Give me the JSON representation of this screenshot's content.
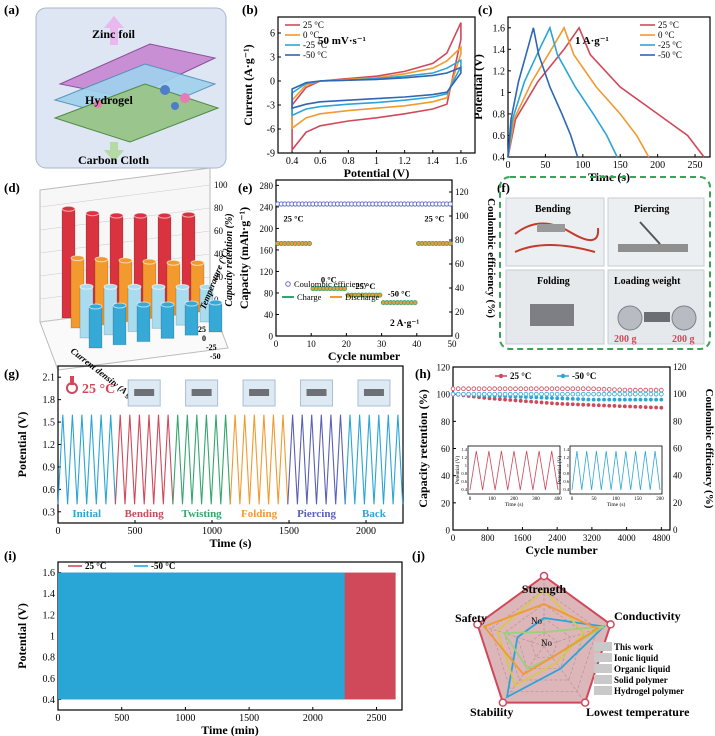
{
  "panels": {
    "a": {
      "label": "(a)",
      "texts": [
        "Zinc foil",
        "Hydrogel",
        "Carbon Cloth"
      ]
    },
    "b": {
      "label": "(b)",
      "annotation": "50 mV·s⁻¹"
    },
    "c": {
      "label": "(c)",
      "annotation": "1 A·g⁻¹"
    },
    "d": {
      "label": "(d)",
      "zlabel": "Capacity retention (%)",
      "xlabel": "Current density (A g⁻¹)",
      "ylabel": "Temperature (°C)"
    },
    "e": {
      "label": "(e)",
      "annotation": "2 A·g⁻¹",
      "temps": [
        "25 °C",
        "0 °C",
        "-25 °C",
        "-50 °C",
        "25 °C"
      ]
    },
    "f": {
      "label": "(f)",
      "cells": [
        "Bending",
        "Piercing",
        "Folding",
        "Loading weight"
      ],
      "weights": [
        "200 g",
        "200 g"
      ]
    },
    "g": {
      "label": "(g)",
      "temp": "25 °C",
      "segments": [
        "Initial",
        "Bending",
        "Twisting",
        "Folding",
        "Piercing",
        "Back"
      ],
      "segment_colors": [
        "#2aa6d6",
        "#d0495b",
        "#34a66f",
        "#f19a30",
        "#5a61b6",
        "#2aa6d6"
      ]
    },
    "h": {
      "label": "(h)"
    },
    "i": {
      "label": "(i)"
    },
    "j": {
      "label": "(j)",
      "inner_marks": [
        "No",
        "No"
      ]
    }
  },
  "chart_data": [
    {
      "panel": "b",
      "type": "line",
      "xlabel": "Potential (V)",
      "ylabel": "Current (A·g⁻¹)",
      "xlim": [
        0.3,
        1.7
      ],
      "ylim": [
        -9,
        8
      ],
      "xticks": [
        0.4,
        0.6,
        0.8,
        1.0,
        1.2,
        1.4,
        1.6
      ],
      "yticks": [
        -9,
        -6,
        -3,
        0,
        3,
        6
      ],
      "series": [
        {
          "name": "25 °C",
          "color": "#d0495b",
          "top": [
            [
              0.4,
              -3.0
            ],
            [
              0.5,
              -0.8
            ],
            [
              0.6,
              0.0
            ],
            [
              0.8,
              0.3
            ],
            [
              1.0,
              0.6
            ],
            [
              1.2,
              1.2
            ],
            [
              1.4,
              2.2
            ],
            [
              1.5,
              3.5
            ],
            [
              1.6,
              7.3
            ]
          ],
          "bottom": [
            [
              0.4,
              -8.6
            ],
            [
              0.5,
              -6.4
            ],
            [
              0.6,
              -5.6
            ],
            [
              0.8,
              -5.0
            ],
            [
              1.0,
              -4.6
            ],
            [
              1.2,
              -4.1
            ],
            [
              1.4,
              -3.5
            ],
            [
              1.5,
              -2.9
            ],
            [
              1.6,
              5.2
            ]
          ]
        },
        {
          "name": "0 °C",
          "color": "#f19a30",
          "top": [
            [
              0.4,
              -2.4
            ],
            [
              0.5,
              -0.5
            ],
            [
              0.6,
              0.0
            ],
            [
              0.8,
              0.2
            ],
            [
              1.0,
              0.4
            ],
            [
              1.2,
              0.9
            ],
            [
              1.4,
              1.6
            ],
            [
              1.5,
              2.5
            ],
            [
              1.6,
              4.2
            ]
          ],
          "bottom": [
            [
              0.4,
              -5.9
            ],
            [
              0.5,
              -4.6
            ],
            [
              0.6,
              -4.1
            ],
            [
              0.8,
              -3.7
            ],
            [
              1.0,
              -3.4
            ],
            [
              1.2,
              -3.1
            ],
            [
              1.4,
              -2.6
            ],
            [
              1.5,
              -2.1
            ],
            [
              1.6,
              3.4
            ]
          ]
        },
        {
          "name": "-25 °C",
          "color": "#2aa6d6",
          "top": [
            [
              0.4,
              -1.5
            ],
            [
              0.5,
              -0.3
            ],
            [
              0.6,
              0.0
            ],
            [
              0.8,
              0.1
            ],
            [
              1.0,
              0.3
            ],
            [
              1.2,
              0.6
            ],
            [
              1.4,
              1.0
            ],
            [
              1.5,
              1.6
            ],
            [
              1.6,
              2.6
            ]
          ],
          "bottom": [
            [
              0.4,
              -4.3
            ],
            [
              0.5,
              -3.5
            ],
            [
              0.6,
              -3.2
            ],
            [
              0.8,
              -2.9
            ],
            [
              1.0,
              -2.7
            ],
            [
              1.2,
              -2.4
            ],
            [
              1.4,
              -2.0
            ],
            [
              1.5,
              -1.6
            ],
            [
              1.6,
              1.8
            ]
          ]
        },
        {
          "name": "-50 °C",
          "color": "#2f66b3",
          "top": [
            [
              0.4,
              -1.0
            ],
            [
              0.5,
              -0.2
            ],
            [
              0.6,
              0.0
            ],
            [
              0.8,
              0.1
            ],
            [
              1.0,
              0.2
            ],
            [
              1.2,
              0.4
            ],
            [
              1.4,
              0.7
            ],
            [
              1.5,
              1.0
            ],
            [
              1.6,
              1.7
            ]
          ],
          "bottom": [
            [
              0.4,
              -3.4
            ],
            [
              0.5,
              -2.9
            ],
            [
              0.6,
              -2.6
            ],
            [
              0.8,
              -2.4
            ],
            [
              1.0,
              -2.2
            ],
            [
              1.2,
              -2.0
            ],
            [
              1.4,
              -1.7
            ],
            [
              1.5,
              -1.4
            ],
            [
              1.6,
              1.0
            ]
          ]
        }
      ],
      "legend_position": "top-left"
    },
    {
      "panel": "c",
      "type": "line",
      "xlabel": "Time (s)",
      "ylabel": "Potential (V)",
      "xlim": [
        0,
        270
      ],
      "ylim": [
        0.4,
        1.7
      ],
      "xticks": [
        0,
        50,
        100,
        150,
        200,
        250
      ],
      "yticks": [
        0.4,
        0.6,
        0.8,
        1.0,
        1.2,
        1.4,
        1.6
      ],
      "series": [
        {
          "name": "25 °C",
          "color": "#d0495b",
          "points": [
            [
              0,
              0.4
            ],
            [
              10,
              0.75
            ],
            [
              40,
              1.1
            ],
            [
              75,
              1.4
            ],
            [
              95,
              1.6
            ],
            [
              110,
              1.35
            ],
            [
              150,
              1.05
            ],
            [
              200,
              0.8
            ],
            [
              240,
              0.6
            ],
            [
              262,
              0.4
            ]
          ]
        },
        {
          "name": "0 °C",
          "color": "#f19a30",
          "points": [
            [
              0,
              0.4
            ],
            [
              8,
              0.75
            ],
            [
              32,
              1.1
            ],
            [
              58,
              1.4
            ],
            [
              75,
              1.6
            ],
            [
              88,
              1.35
            ],
            [
              118,
              1.05
            ],
            [
              150,
              0.8
            ],
            [
              172,
              0.6
            ],
            [
              188,
              0.4
            ]
          ]
        },
        {
          "name": "-25 °C",
          "color": "#2aa6d6",
          "points": [
            [
              0,
              0.4
            ],
            [
              6,
              0.75
            ],
            [
              22,
              1.1
            ],
            [
              42,
              1.4
            ],
            [
              56,
              1.6
            ],
            [
              66,
              1.35
            ],
            [
              90,
              1.05
            ],
            [
              114,
              0.8
            ],
            [
              132,
              0.6
            ],
            [
              146,
              0.4
            ]
          ]
        },
        {
          "name": "-50 °C",
          "color": "#2f66b3",
          "points": [
            [
              0,
              0.4
            ],
            [
              4,
              0.75
            ],
            [
              14,
              1.1
            ],
            [
              26,
              1.4
            ],
            [
              34,
              1.6
            ],
            [
              41,
              1.35
            ],
            [
              56,
              1.05
            ],
            [
              72,
              0.8
            ],
            [
              84,
              0.6
            ],
            [
              93,
              0.4
            ]
          ]
        }
      ],
      "legend_position": "top-right"
    },
    {
      "panel": "d",
      "type": "bar",
      "series": [
        {
          "name": "25",
          "color": "#d8333f",
          "values": [
            100,
            93,
            88,
            85,
            82,
            80
          ]
        },
        {
          "name": "0",
          "color": "#f29a2e",
          "values": [
            64,
            60,
            56,
            52,
            48,
            45
          ]
        },
        {
          "name": "-25",
          "color": "#a9dcef",
          "values": [
            47,
            44,
            41,
            38,
            35,
            32
          ]
        },
        {
          "name": "-50",
          "color": "#36a9d6",
          "values": [
            38,
            36,
            34,
            31,
            29,
            27
          ]
        }
      ],
      "zticks": [
        0,
        20,
        40,
        60,
        80,
        100
      ]
    },
    {
      "panel": "e",
      "type": "line",
      "xlabel": "Cycle number",
      "ylabel": "Capacity (mAh·g⁻¹)",
      "y2label": "Coulombic efficiency (%)",
      "xlim": [
        0,
        50
      ],
      "ylim": [
        0,
        290
      ],
      "y2lim": [
        0,
        130
      ],
      "xticks": [
        0,
        10,
        20,
        30,
        40,
        50
      ],
      "yticks": [
        0,
        40,
        80,
        120,
        160,
        200,
        240,
        280
      ],
      "y2ticks": [
        0,
        20,
        40,
        60,
        80,
        100,
        120
      ],
      "segments": [
        {
          "from": 1,
          "to": 10,
          "capacity": 172
        },
        {
          "from": 11,
          "to": 20,
          "capacity": 88
        },
        {
          "from": 21,
          "to": 30,
          "capacity": 76
        },
        {
          "from": 31,
          "to": 40,
          "capacity": 62
        },
        {
          "from": 41,
          "to": 50,
          "capacity": 172
        }
      ],
      "coulombic_efficiency": 110,
      "series": [
        {
          "name": "Coulombic efficiency",
          "color": "#6673c8"
        },
        {
          "name": "Charge",
          "color": "#34a66f"
        },
        {
          "name": "Discharge",
          "color": "#f19a30"
        }
      ],
      "legend_position": "bottom-left"
    },
    {
      "panel": "g",
      "type": "line",
      "xlabel": "Time (s)",
      "ylabel": "Potential (V)",
      "xlim": [
        0,
        2240
      ],
      "ylim": [
        0.15,
        2.25
      ],
      "xticks": [
        0,
        500,
        1000,
        1500,
        2000
      ],
      "yticks": [
        0.3,
        0.6,
        0.9,
        1.2,
        1.5,
        1.8,
        2.1
      ],
      "vmin": 0.4,
      "vmax": 1.6,
      "cycles_per_segment": 6,
      "segment_duration": 373
    },
    {
      "panel": "h",
      "type": "scatter",
      "xlabel": "Cycle number",
      "ylabel": "Capacity retention (%)",
      "y2label": "Coulombic efficiency (%)",
      "xlim": [
        0,
        5000
      ],
      "ylim": [
        0,
        120
      ],
      "y2lim": [
        0,
        120
      ],
      "xticks": [
        0,
        800,
        1600,
        2400,
        3200,
        4000,
        4800
      ],
      "yticks": [
        0,
        20,
        40,
        60,
        80,
        100,
        120
      ],
      "series": [
        {
          "name": "25 °C",
          "color": "#d0495b",
          "retention": [
            [
              0,
              100
            ],
            [
              800,
              97
            ],
            [
              1600,
              95
            ],
            [
              2400,
              93
            ],
            [
              3200,
              92
            ],
            [
              4000,
              91
            ],
            [
              4800,
              90
            ]
          ],
          "efficiency": [
            [
              0,
              104
            ],
            [
              800,
              104
            ],
            [
              1600,
              104
            ],
            [
              2400,
              104
            ],
            [
              3200,
              104
            ],
            [
              4000,
              103
            ],
            [
              4800,
              103
            ]
          ]
        },
        {
          "name": "-50 °C",
          "color": "#2aa6d6",
          "retention": [
            [
              0,
              100
            ],
            [
              800,
              99
            ],
            [
              1600,
              98
            ],
            [
              2400,
              97
            ],
            [
              3200,
              96
            ],
            [
              4000,
              96
            ],
            [
              4800,
              96
            ]
          ],
          "efficiency": [
            [
              0,
              100
            ],
            [
              800,
              100
            ],
            [
              1600,
              100
            ],
            [
              2400,
              100
            ],
            [
              3200,
              100
            ],
            [
              4000,
              100
            ],
            [
              4800,
              100
            ]
          ]
        }
      ],
      "insets": [
        {
          "xlabel": "Time (s)",
          "ylabel": "Potential (V)",
          "xticks": [
            0,
            100,
            200,
            300,
            400
          ],
          "yticks": [
            0.4,
            0.6,
            0.8,
            1.0,
            1.2,
            1.4
          ],
          "color": "#d0495b",
          "cycles": 7
        },
        {
          "xlabel": "Time (s)",
          "ylabel": "Potential (V)",
          "xticks": [
            0,
            50,
            100,
            150,
            200
          ],
          "yticks": [
            0.4,
            0.6,
            0.8,
            1.0,
            1.2,
            1.4
          ],
          "color": "#2aa6d6",
          "cycles": 9
        }
      ],
      "legend_position": "top"
    },
    {
      "panel": "i",
      "type": "area",
      "xlabel": "Time (min)",
      "ylabel": "Potential (V)",
      "xlim": [
        0,
        2700
      ],
      "ylim": [
        0.3,
        1.7
      ],
      "xticks": [
        0,
        500,
        1000,
        1500,
        2000,
        2500
      ],
      "yticks": [
        0.4,
        0.6,
        0.8,
        1.0,
        1.2,
        1.4,
        1.6
      ],
      "series": [
        {
          "name": "25 °C",
          "color": "#d0495b",
          "x_end": 2650,
          "vmin": 0.4,
          "vmax": 1.6
        },
        {
          "name": "-50 °C",
          "color": "#2aa6d6",
          "x_end": 2250,
          "vmin": 0.4,
          "vmax": 1.6
        }
      ],
      "legend_position": "top-left"
    },
    {
      "panel": "j",
      "type": "radar",
      "axes": [
        "Strength",
        "Conductivity",
        "Lowest temperature",
        "Stability",
        "Safety"
      ],
      "series": [
        {
          "name": "This work",
          "color": "#d0495b",
          "fill": "#d8a6aa",
          "values": [
            5,
            5,
            5,
            5,
            5
          ]
        },
        {
          "name": "Ionic liquid",
          "color": "#2aa6d6",
          "fill": "none",
          "values": [
            2,
            4.5,
            2,
            4.5,
            2
          ]
        },
        {
          "name": "Organic liquid",
          "color": "#d7c84a",
          "fill": "none",
          "values": [
            4,
            3,
            1.5,
            3.5,
            3.5
          ]
        },
        {
          "name": "Solid polymer",
          "color": "#9ccf7e",
          "fill": "none",
          "values": [
            1,
            4.5,
            1,
            2,
            3
          ]
        },
        {
          "name": "Hydrogel polymer",
          "color": "#f19a30",
          "fill": "none",
          "values": [
            3,
            4,
            1,
            2.5,
            4.5
          ]
        }
      ]
    }
  ]
}
